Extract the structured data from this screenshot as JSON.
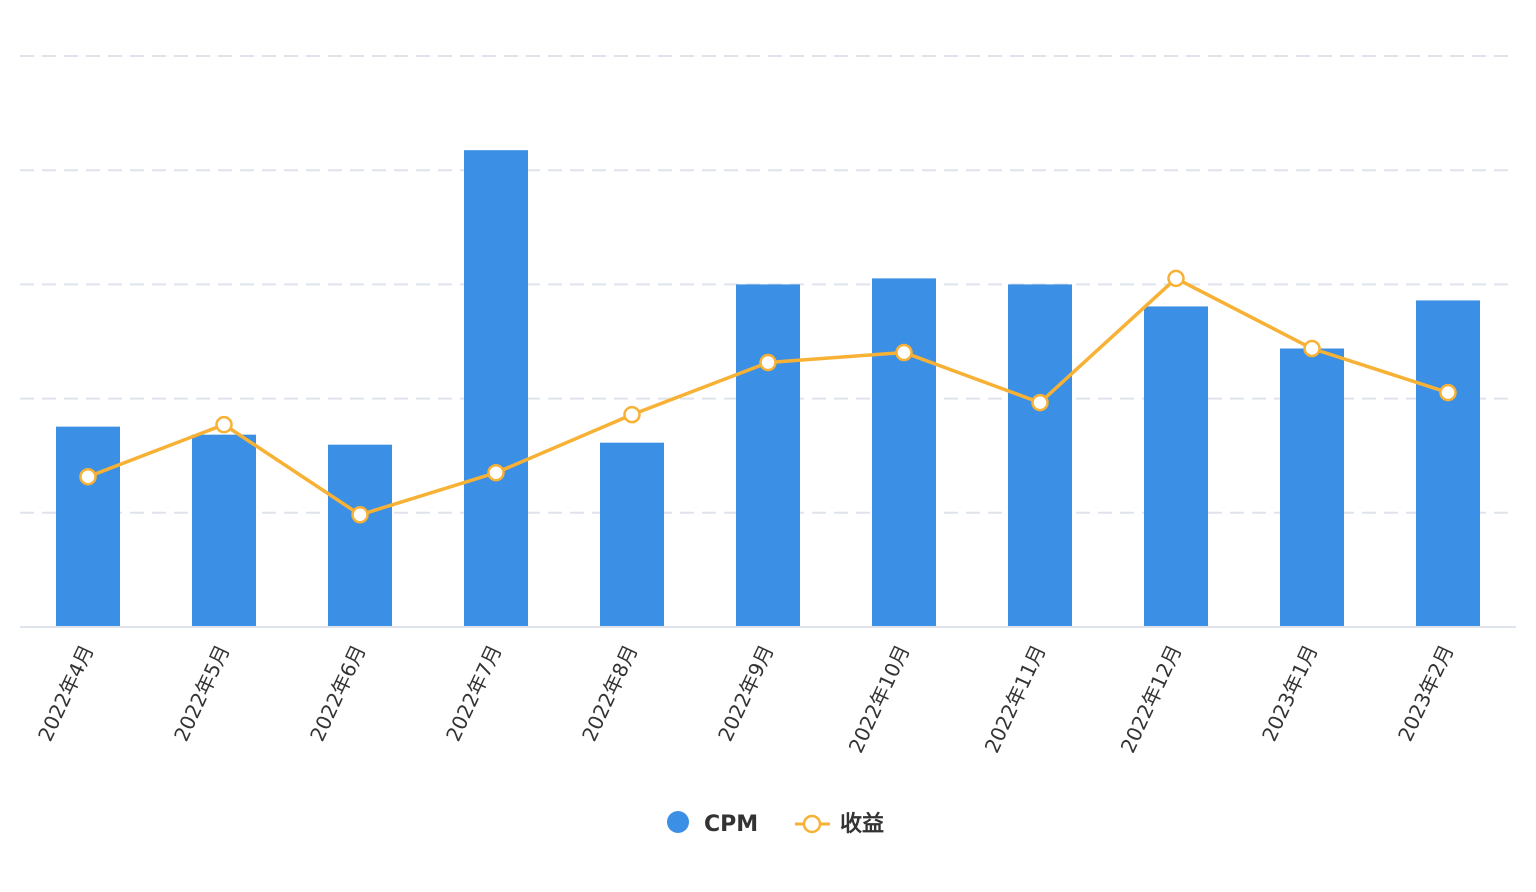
{
  "chart_data": {
    "type": "bar",
    "categories": [
      "2022年4月",
      "2022年5月",
      "2022年6月",
      "2022年7月",
      "2022年8月",
      "2022年9月",
      "2022年10月",
      "2022年11月",
      "2022年12月",
      "2023年1月",
      "2023年2月"
    ],
    "series": [
      {
        "name": "CPM",
        "type": "bar",
        "values": [
          200,
          192,
          182,
          476,
          184,
          342,
          348,
          342,
          320,
          278,
          326
        ]
      },
      {
        "name": "收益",
        "type": "line",
        "values": [
          150,
          202,
          112,
          154,
          212,
          264,
          274,
          224,
          348,
          278,
          234
        ]
      }
    ],
    "ylim": [
      0,
      570
    ],
    "grid": true,
    "legend_position": "bottom-center",
    "colors": {
      "bar": "#3b8fe5",
      "line": "#f7b135",
      "grid": "#dfe3ec",
      "axis": "#dfe3ec",
      "marker_fill": "#ffffff",
      "text": "#333333"
    }
  }
}
